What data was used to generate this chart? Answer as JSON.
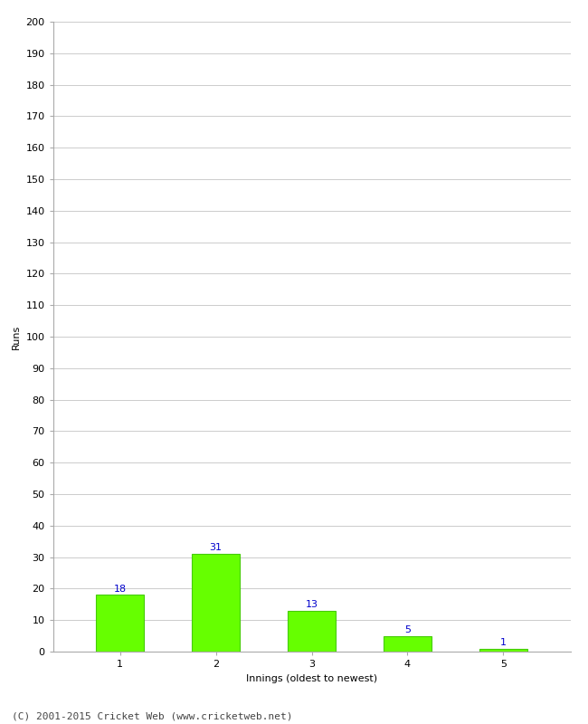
{
  "categories": [
    1,
    2,
    3,
    4,
    5
  ],
  "values": [
    18,
    31,
    13,
    5,
    1
  ],
  "bar_color": "#66ff00",
  "bar_edge_color": "#44cc00",
  "xlabel": "Innings (oldest to newest)",
  "ylabel": "Runs",
  "ylim": [
    0,
    200
  ],
  "ytick_step": 10,
  "label_color": "#0000cc",
  "label_fontsize": 8,
  "axis_fontsize": 8,
  "tick_fontsize": 8,
  "footer_text": "(C) 2001-2015 Cricket Web (www.cricketweb.net)",
  "footer_fontsize": 8,
  "background_color": "#ffffff",
  "grid_color": "#cccccc",
  "bar_width": 0.5
}
